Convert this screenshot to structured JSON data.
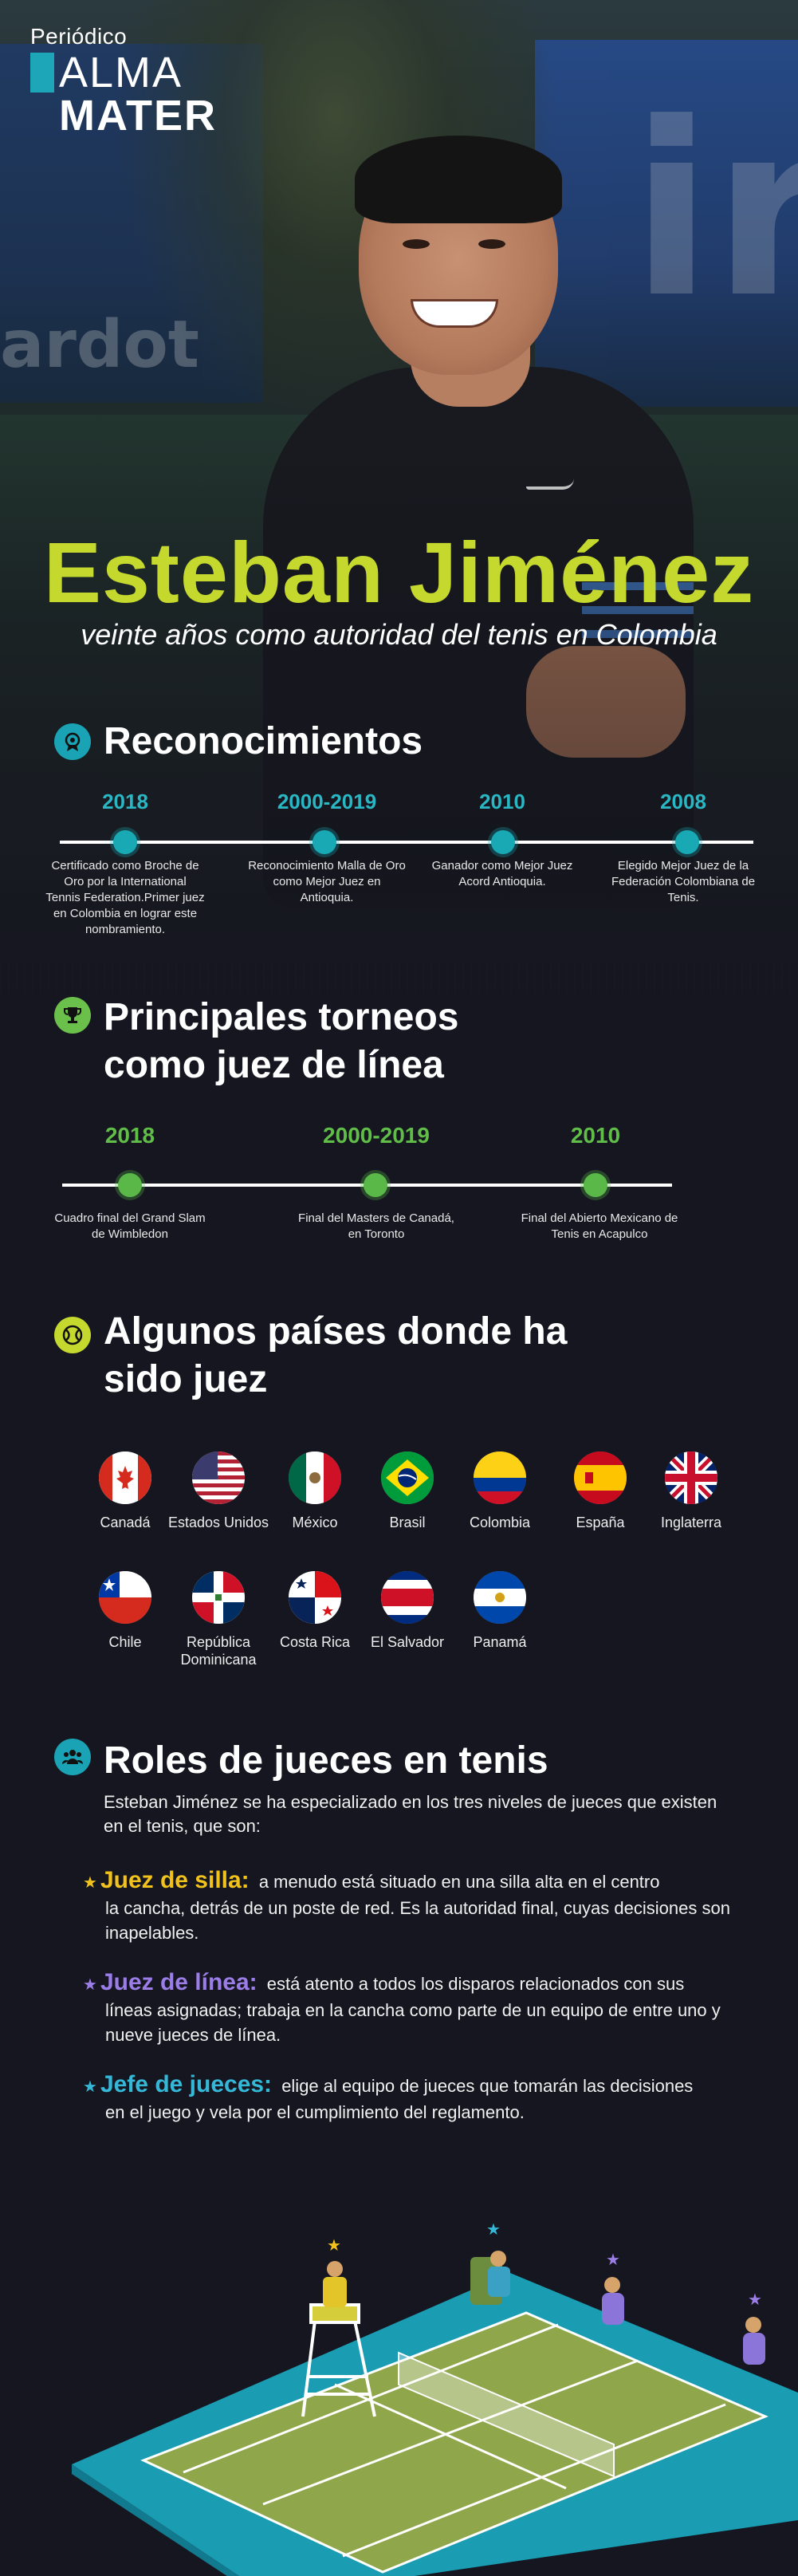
{
  "logo": {
    "prefix": "Periódico",
    "line1": "ALMA",
    "line2": "MATER"
  },
  "hero": {
    "name": "Esteban Jiménez",
    "subtitle": "veinte años como autoridad del tenis en Colombia",
    "banner_text_left": "ardot",
    "banner_text_right": "ir"
  },
  "reconocimientos": {
    "title": "Reconocimientos",
    "icon": "medal-icon",
    "items": [
      {
        "year": "2018",
        "text": "Certificado como Broche de Oro por la International Tennis Federation.Primer juez en Colombia en lograr este nombramiento."
      },
      {
        "year": "2000-2019",
        "text": "Reconocimiento Malla de Oro como Mejor Juez en Antioquia."
      },
      {
        "year": "2010",
        "text": "Ganador como Mejor Juez Acord Antioquia."
      },
      {
        "year": "2008",
        "text": "Elegido Mejor Juez de la Federación Colombiana de Tenis."
      }
    ]
  },
  "torneos": {
    "title_line1": "Principales torneos",
    "title_line2": "como juez de línea",
    "icon": "trophy-icon",
    "items": [
      {
        "year": "2018",
        "text": "Cuadro final del Grand Slam de Wimbledon"
      },
      {
        "year": "2000-2019",
        "text": "Final del Masters de Canadá, en Toronto"
      },
      {
        "year": "2010",
        "text": "Final del Abierto Mexicano de Tenis en Acapulco"
      }
    ]
  },
  "paises": {
    "title_line1": "Algunos países donde ha",
    "title_line2": "sido juez",
    "icon": "tennis-ball-icon",
    "countries": [
      {
        "name": "Canadá",
        "flag": "canada-flag-icon"
      },
      {
        "name": "Estados Unidos",
        "flag": "usa-flag-icon"
      },
      {
        "name": "México",
        "flag": "mexico-flag-icon"
      },
      {
        "name": "Brasil",
        "flag": "brazil-flag-icon"
      },
      {
        "name": "Colombia",
        "flag": "colombia-flag-icon"
      },
      {
        "name": "España",
        "flag": "spain-flag-icon"
      },
      {
        "name": "Inglaterra",
        "flag": "uk-flag-icon"
      },
      {
        "name": "Chile",
        "flag": "chile-flag-icon"
      },
      {
        "name": "República Dominicana",
        "flag": "dominican-republic-flag-icon"
      },
      {
        "name": "Costa Rica",
        "flag": "panama-flag-icon"
      },
      {
        "name": "El Salvador",
        "flag": "costa-rica-flag-icon"
      },
      {
        "name": "Panamá",
        "flag": "el-salvador-flag-icon"
      }
    ]
  },
  "roles": {
    "title": "Roles de jueces en tenis",
    "icon": "group-icon",
    "intro": "Esteban Jiménez se ha especializado en los tres niveles de jueces que existen en el tenis, que son:",
    "items": [
      {
        "name": "Juez de silla:",
        "color": "#f2c21c",
        "text_first": "a menudo está situado en una silla alta en el centro",
        "text_rest": "la cancha, detrás de un poste de red. Es la autoridad final, cuyas decisiones son inapelables."
      },
      {
        "name": "Juez de línea:",
        "color": "#9b7de8",
        "text_first": "está atento a todos los disparos relacionados con sus",
        "text_rest": "líneas asignadas; trabaja en la cancha como parte de un equipo de entre uno y nueve jueces de línea."
      },
      {
        "name": "Jefe de jueces:",
        "color": "#35b8d8",
        "text_first": "elige al equipo de jueces que tomarán las decisiones",
        "text_rest": "en el juego y vela por el cumplimiento del reglamento."
      }
    ]
  },
  "colors": {
    "accent_green": "#c4d82e",
    "teal": "#18a9b4",
    "green": "#59b847",
    "background": "#15161f"
  }
}
